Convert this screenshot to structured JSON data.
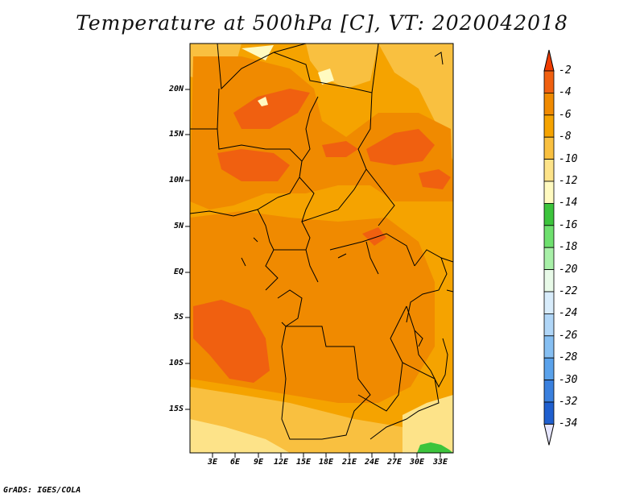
{
  "title": "Temperature at 500hPa [C], VT: 2020042018",
  "credit": "GrADS: IGES/COLA",
  "map": {
    "lat_labels": [
      "20N",
      "15N",
      "10N",
      "5N",
      "EQ",
      "5S",
      "10S",
      "15S"
    ],
    "lon_labels": [
      "3E",
      "6E",
      "9E",
      "12E",
      "15E",
      "18E",
      "21E",
      "24E",
      "27E",
      "30E",
      "33E"
    ]
  },
  "colorbar": {
    "labels": [
      "-2",
      "-4",
      "-6",
      "-8",
      "-10",
      "-12",
      "-14",
      "-16",
      "-18",
      "-20",
      "-22",
      "-24",
      "-26",
      "-28",
      "-30",
      "-32",
      "-34"
    ],
    "colors": [
      "#f06010",
      "#f08a00",
      "#f5a300",
      "#f9c040",
      "#fde389",
      "#fffac0",
      "#3cc43c",
      "#6ee06e",
      "#a8f0a8",
      "#e8fae8",
      "#d8ecfb",
      "#b0d6f7",
      "#86bff2",
      "#5aa2eb",
      "#3a80de",
      "#1f5fcf",
      "#0a3aa8",
      "#0a0a70",
      "#e6e6ff"
    ],
    "under_color": "#f03c00",
    "over_color": "#e6e6ff"
  }
}
